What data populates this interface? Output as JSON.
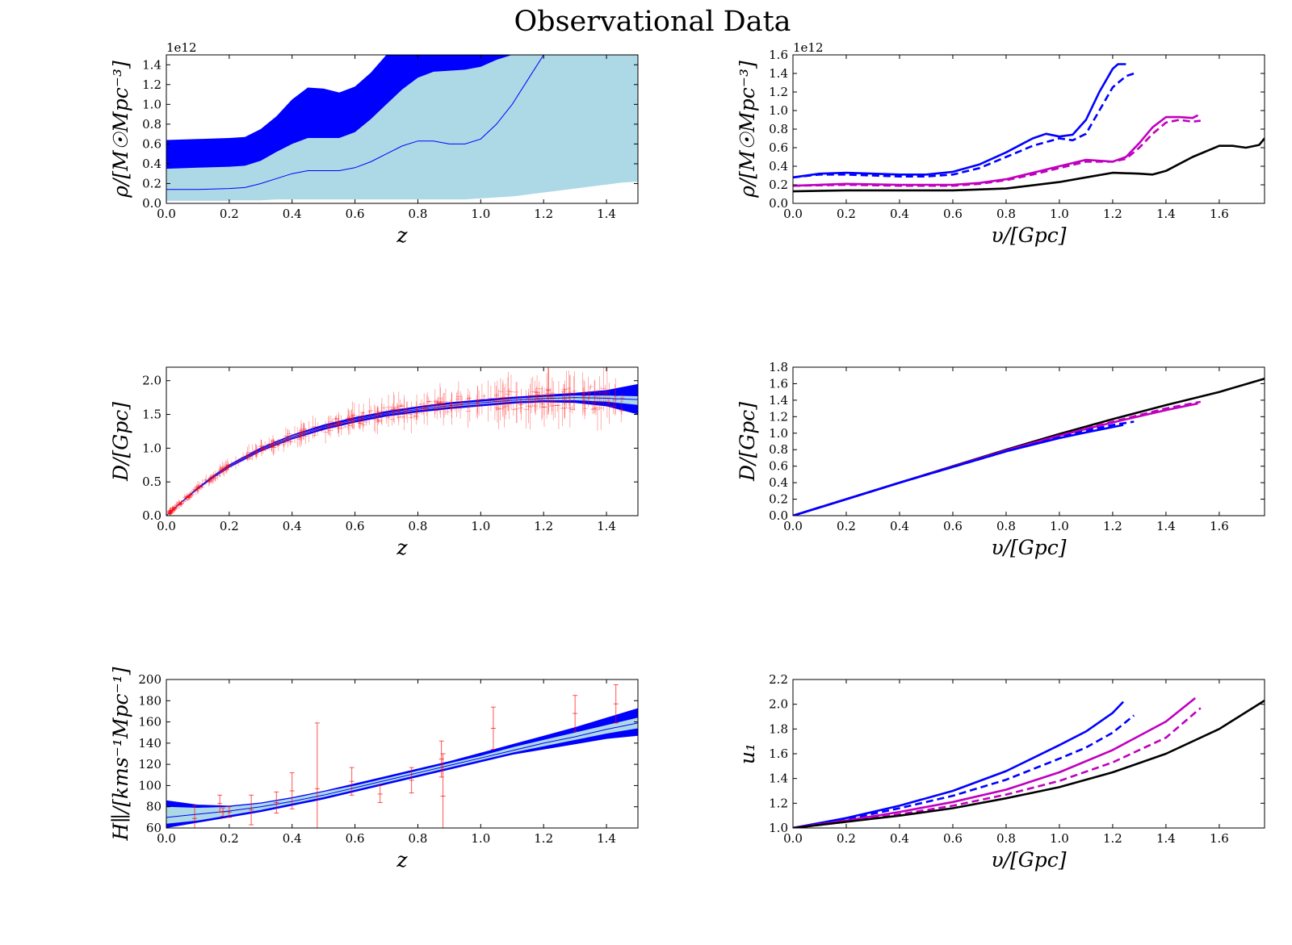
{
  "title": "Observational Data",
  "colors": {
    "dark_band": "#0000ff",
    "light_band": "#add8e6",
    "mean_line": "#0000ff",
    "error_bars": "#ff0000",
    "blue": "#0000ff",
    "magenta": "#bf00bf",
    "black": "#000000"
  },
  "chart_data": [
    {
      "id": "rho_z",
      "type": "area",
      "ylabel": "ρ/[M☉Mpc⁻³]",
      "xlabel": "z",
      "multiplier": "1e12",
      "xlim": [
        0,
        1.5
      ],
      "ylim": [
        0,
        1.5
      ],
      "xticks": [
        "0.0",
        "0.2",
        "0.4",
        "0.6",
        "0.8",
        "1.0",
        "1.2",
        "1.4"
      ],
      "yticks": [
        "0.0",
        "0.2",
        "0.4",
        "0.6",
        "0.8",
        "1.0",
        "1.2",
        "1.4"
      ],
      "x": [
        0,
        0.1,
        0.2,
        0.25,
        0.3,
        0.35,
        0.4,
        0.45,
        0.5,
        0.55,
        0.6,
        0.65,
        0.7,
        0.75,
        0.8,
        0.85,
        0.9,
        0.95,
        1.0,
        1.05,
        1.1,
        1.15,
        1.2,
        1.25,
        1.3,
        1.35,
        1.4,
        1.45,
        1.5
      ],
      "series": [
        {
          "band": "outer",
          "upper": [
            0.64,
            0.65,
            0.66,
            0.67,
            0.75,
            0.88,
            1.05,
            1.17,
            1.16,
            1.12,
            1.18,
            1.32,
            1.5,
            1.5,
            1.5,
            1.5,
            1.5,
            1.5,
            1.5,
            1.5,
            1.5,
            1.5,
            1.5,
            1.5,
            1.5,
            1.5,
            1.5,
            1.5,
            1.5
          ],
          "lower": [
            0.03,
            0.03,
            0.03,
            0.04,
            0.06,
            0.08,
            0.09,
            0.1,
            0.09,
            0.09,
            0.1,
            0.12,
            0.14,
            0.16,
            0.18,
            0.19,
            0.19,
            0.18,
            0.18,
            0.2,
            0.24,
            0.3,
            0.38,
            0.5,
            0.62,
            0.8,
            1.0,
            1.25,
            1.38
          ]
        },
        {
          "band": "inner",
          "upper": [
            0.35,
            0.36,
            0.37,
            0.38,
            0.43,
            0.52,
            0.6,
            0.66,
            0.66,
            0.66,
            0.72,
            0.85,
            1.0,
            1.15,
            1.27,
            1.33,
            1.34,
            1.35,
            1.38,
            1.45,
            1.5,
            1.5,
            1.5,
            1.5,
            1.5,
            1.5,
            1.5,
            1.5,
            1.5
          ],
          "lower": [
            0.03,
            0.03,
            0.03,
            0.03,
            0.03,
            0.04,
            0.04,
            0.04,
            0.04,
            0.04,
            0.04,
            0.04,
            0.04,
            0.04,
            0.04,
            0.04,
            0.04,
            0.04,
            0.05,
            0.06,
            0.07,
            0.09,
            0.11,
            0.13,
            0.15,
            0.17,
            0.19,
            0.21,
            0.22
          ]
        },
        {
          "band": "mean",
          "values": [
            0.14,
            0.14,
            0.15,
            0.16,
            0.2,
            0.25,
            0.3,
            0.33,
            0.33,
            0.33,
            0.36,
            0.42,
            0.5,
            0.58,
            0.63,
            0.63,
            0.6,
            0.6,
            0.65,
            0.8,
            1.0,
            1.25,
            1.5,
            null,
            null,
            null,
            null,
            null,
            null
          ]
        }
      ]
    },
    {
      "id": "rho_v",
      "type": "line",
      "ylabel": "ρ/[M☉Mpc⁻³]",
      "xlabel": "υ/[Gpc]",
      "multiplier": "1e12",
      "xlim": [
        0,
        1.77
      ],
      "ylim": [
        0,
        1.6
      ],
      "xticks": [
        "0.0",
        "0.2",
        "0.4",
        "0.6",
        "0.8",
        "1.0",
        "1.2",
        "1.4",
        "1.6"
      ],
      "yticks": [
        "0.0",
        "0.2",
        "0.4",
        "0.6",
        "0.8",
        "1.0",
        "1.2",
        "1.4",
        "1.6"
      ],
      "series": [
        {
          "color": "blue",
          "style": "solid",
          "x": [
            0,
            0.1,
            0.2,
            0.3,
            0.4,
            0.5,
            0.6,
            0.7,
            0.8,
            0.9,
            0.95,
            1.0,
            1.05,
            1.1,
            1.15,
            1.2,
            1.22,
            1.25
          ],
          "y": [
            0.28,
            0.32,
            0.33,
            0.32,
            0.31,
            0.31,
            0.34,
            0.42,
            0.55,
            0.7,
            0.75,
            0.72,
            0.74,
            0.9,
            1.2,
            1.45,
            1.5,
            1.5
          ]
        },
        {
          "color": "blue",
          "style": "dashed",
          "x": [
            0,
            0.1,
            0.2,
            0.3,
            0.4,
            0.5,
            0.6,
            0.7,
            0.8,
            0.9,
            1.0,
            1.05,
            1.1,
            1.15,
            1.2,
            1.25,
            1.28
          ],
          "y": [
            0.28,
            0.31,
            0.31,
            0.3,
            0.29,
            0.29,
            0.31,
            0.38,
            0.5,
            0.62,
            0.7,
            0.68,
            0.75,
            1.0,
            1.25,
            1.37,
            1.4
          ]
        },
        {
          "color": "magenta",
          "style": "solid",
          "x": [
            0,
            0.2,
            0.4,
            0.6,
            0.7,
            0.8,
            0.9,
            1.0,
            1.1,
            1.2,
            1.25,
            1.3,
            1.35,
            1.4,
            1.45,
            1.5,
            1.52
          ],
          "y": [
            0.19,
            0.21,
            0.2,
            0.2,
            0.22,
            0.26,
            0.33,
            0.4,
            0.47,
            0.45,
            0.5,
            0.65,
            0.82,
            0.93,
            0.93,
            0.92,
            0.95
          ]
        },
        {
          "color": "magenta",
          "style": "dashed",
          "x": [
            0,
            0.2,
            0.4,
            0.6,
            0.7,
            0.8,
            0.9,
            1.0,
            1.1,
            1.2,
            1.25,
            1.3,
            1.35,
            1.4,
            1.45,
            1.5,
            1.53
          ],
          "y": [
            0.19,
            0.2,
            0.19,
            0.19,
            0.21,
            0.25,
            0.31,
            0.38,
            0.45,
            0.45,
            0.48,
            0.6,
            0.75,
            0.87,
            0.9,
            0.88,
            0.89
          ]
        },
        {
          "color": "black",
          "style": "solid",
          "x": [
            0,
            0.2,
            0.4,
            0.6,
            0.8,
            1.0,
            1.1,
            1.2,
            1.3,
            1.35,
            1.4,
            1.5,
            1.6,
            1.65,
            1.7,
            1.75,
            1.77
          ],
          "y": [
            0.13,
            0.14,
            0.14,
            0.14,
            0.16,
            0.23,
            0.28,
            0.33,
            0.32,
            0.31,
            0.35,
            0.5,
            0.62,
            0.62,
            0.6,
            0.63,
            0.7
          ]
        }
      ]
    },
    {
      "id": "D_z",
      "type": "area",
      "ylabel": "D/[Gpc]",
      "xlabel": "z",
      "xlim": [
        0,
        1.5
      ],
      "ylim": [
        0,
        2.2
      ],
      "xticks": [
        "0.0",
        "0.2",
        "0.4",
        "0.6",
        "0.8",
        "1.0",
        "1.2",
        "1.4"
      ],
      "yticks": [
        "0.0",
        "0.5",
        "1.0",
        "1.5",
        "2.0"
      ],
      "x": [
        0,
        0.05,
        0.1,
        0.15,
        0.2,
        0.3,
        0.4,
        0.5,
        0.6,
        0.7,
        0.8,
        0.9,
        1.0,
        1.1,
        1.2,
        1.3,
        1.4,
        1.5
      ],
      "series": [
        {
          "band": "outer",
          "upper": [
            0,
            0.22,
            0.42,
            0.6,
            0.76,
            1.01,
            1.2,
            1.35,
            1.46,
            1.55,
            1.62,
            1.68,
            1.72,
            1.76,
            1.79,
            1.82,
            1.86,
            1.95
          ],
          "lower": [
            0,
            0.2,
            0.39,
            0.56,
            0.71,
            0.95,
            1.13,
            1.27,
            1.38,
            1.47,
            1.53,
            1.58,
            1.62,
            1.66,
            1.68,
            1.67,
            1.62,
            1.5
          ]
        },
        {
          "band": "inner",
          "upper": [
            0,
            0.215,
            0.41,
            0.59,
            0.745,
            0.99,
            1.18,
            1.32,
            1.43,
            1.52,
            1.59,
            1.65,
            1.69,
            1.73,
            1.76,
            1.78,
            1.78,
            1.77
          ],
          "lower": [
            0,
            0.205,
            0.4,
            0.57,
            0.725,
            0.97,
            1.15,
            1.3,
            1.41,
            1.5,
            1.56,
            1.61,
            1.65,
            1.69,
            1.71,
            1.71,
            1.69,
            1.64
          ]
        },
        {
          "band": "mean",
          "values": [
            0,
            0.21,
            0.405,
            0.58,
            0.735,
            0.98,
            1.165,
            1.31,
            1.42,
            1.51,
            1.575,
            1.63,
            1.67,
            1.71,
            1.735,
            1.75,
            1.74,
            1.72
          ]
        }
      ],
      "errorbars": {
        "color": "error_bars"
      }
    },
    {
      "id": "D_v",
      "type": "line",
      "ylabel": "D/[Gpc]",
      "xlabel": "υ/[Gpc]",
      "xlim": [
        0,
        1.77
      ],
      "ylim": [
        0,
        1.8
      ],
      "xticks": [
        "0.0",
        "0.2",
        "0.4",
        "0.6",
        "0.8",
        "1.0",
        "1.2",
        "1.4",
        "1.6"
      ],
      "yticks": [
        "0.0",
        "0.2",
        "0.4",
        "0.6",
        "0.8",
        "1.0",
        "1.2",
        "1.4",
        "1.6",
        "1.8"
      ],
      "series": [
        {
          "color": "black",
          "style": "solid",
          "x": [
            0,
            0.4,
            0.8,
            1.0,
            1.2,
            1.4,
            1.6,
            1.77
          ],
          "y": [
            0,
            0.4,
            0.8,
            0.99,
            1.17,
            1.34,
            1.5,
            1.66
          ]
        },
        {
          "color": "magenta",
          "style": "solid",
          "x": [
            0,
            0.4,
            0.8,
            1.0,
            1.2,
            1.4,
            1.52
          ],
          "y": [
            0,
            0.4,
            0.79,
            0.97,
            1.13,
            1.28,
            1.36
          ]
        },
        {
          "color": "magenta",
          "style": "dashed",
          "x": [
            0,
            0.4,
            0.8,
            1.0,
            1.2,
            1.4,
            1.53
          ],
          "y": [
            0,
            0.4,
            0.79,
            0.97,
            1.14,
            1.3,
            1.38
          ]
        },
        {
          "color": "blue",
          "style": "solid",
          "x": [
            0,
            0.4,
            0.8,
            1.0,
            1.1,
            1.24
          ],
          "y": [
            0,
            0.4,
            0.78,
            0.94,
            1.01,
            1.1
          ]
        },
        {
          "color": "blue",
          "style": "dashed",
          "x": [
            0,
            0.4,
            0.8,
            1.0,
            1.1,
            1.2,
            1.28
          ],
          "y": [
            0,
            0.4,
            0.78,
            0.95,
            1.03,
            1.1,
            1.14
          ]
        }
      ]
    },
    {
      "id": "H_z",
      "type": "area",
      "ylabel": "H∥/[kms⁻¹Mpc⁻¹]",
      "xlabel": "z",
      "xlim": [
        0,
        1.5
      ],
      "ylim": [
        60,
        200
      ],
      "xticks": [
        "0.0",
        "0.2",
        "0.4",
        "0.6",
        "0.8",
        "1.0",
        "1.2",
        "1.4"
      ],
      "yticks": [
        "60",
        "80",
        "100",
        "120",
        "140",
        "160",
        "180",
        "200"
      ],
      "x": [
        0,
        0.1,
        0.2,
        0.3,
        0.4,
        0.5,
        0.6,
        0.7,
        0.8,
        0.9,
        1.0,
        1.1,
        1.2,
        1.3,
        1.4,
        1.5
      ],
      "series": [
        {
          "band": "outer",
          "upper": [
            86,
            82,
            81,
            84,
            89,
            95,
            102,
            109,
            116,
            123,
            131,
            139,
            147,
            155,
            164,
            173
          ],
          "lower": [
            60,
            65,
            70,
            75,
            81,
            87,
            94,
            101,
            108,
            115,
            122,
            129,
            134,
            139,
            144,
            147
          ]
        },
        {
          "band": "inner",
          "upper": [
            80,
            79,
            80,
            83,
            88,
            94,
            100,
            107,
            114,
            121,
            128,
            136,
            143,
            150,
            157,
            164
          ],
          "lower": [
            64,
            67,
            72,
            77,
            83,
            89,
            96,
            103,
            110,
            117,
            124,
            131,
            137,
            143,
            149,
            154
          ]
        },
        {
          "band": "mean",
          "values": [
            70,
            73,
            76,
            80,
            85,
            91,
            98,
            105,
            112,
            119,
            126,
            133,
            140,
            146,
            153,
            159
          ]
        }
      ],
      "points": [
        {
          "z": 0.09,
          "H": 69,
          "err": 12
        },
        {
          "z": 0.17,
          "H": 83,
          "err": 8
        },
        {
          "z": 0.18,
          "H": 75,
          "err": 4
        },
        {
          "z": 0.2,
          "H": 75,
          "err": 5
        },
        {
          "z": 0.27,
          "H": 77,
          "err": 14
        },
        {
          "z": 0.35,
          "H": 84,
          "err": 10
        },
        {
          "z": 0.4,
          "H": 95,
          "err": 17
        },
        {
          "z": 0.48,
          "H": 97,
          "err": 62
        },
        {
          "z": 0.59,
          "H": 104,
          "err": 13
        },
        {
          "z": 0.68,
          "H": 92,
          "err": 8
        },
        {
          "z": 0.78,
          "H": 105,
          "err": 12
        },
        {
          "z": 0.875,
          "H": 125,
          "err": 17
        },
        {
          "z": 0.88,
          "H": 90,
          "err": 40
        },
        {
          "z": 1.04,
          "H": 154,
          "err": 20
        },
        {
          "z": 1.3,
          "H": 168,
          "err": 17
        },
        {
          "z": 1.43,
          "H": 177,
          "err": 18
        }
      ]
    },
    {
      "id": "u1_v",
      "type": "line",
      "ylabel": "u₁",
      "xlabel": "υ/[Gpc]",
      "xlim": [
        0,
        1.77
      ],
      "ylim": [
        1.0,
        2.2
      ],
      "xticks": [
        "0.0",
        "0.2",
        "0.4",
        "0.6",
        "0.8",
        "1.0",
        "1.2",
        "1.4",
        "1.6"
      ],
      "yticks": [
        "1.0",
        "1.2",
        "1.4",
        "1.6",
        "1.8",
        "2.0",
        "2.2"
      ],
      "series": [
        {
          "color": "blue",
          "style": "solid",
          "x": [
            0,
            0.2,
            0.4,
            0.6,
            0.8,
            1.0,
            1.1,
            1.2,
            1.24
          ],
          "y": [
            1.0,
            1.08,
            1.18,
            1.3,
            1.46,
            1.67,
            1.78,
            1.93,
            2.02
          ]
        },
        {
          "color": "blue",
          "style": "dashed",
          "x": [
            0,
            0.2,
            0.4,
            0.6,
            0.8,
            1.0,
            1.1,
            1.2,
            1.28
          ],
          "y": [
            1.0,
            1.07,
            1.16,
            1.26,
            1.39,
            1.56,
            1.65,
            1.77,
            1.91
          ]
        },
        {
          "color": "magenta",
          "style": "solid",
          "x": [
            0,
            0.2,
            0.4,
            0.6,
            0.8,
            1.0,
            1.2,
            1.4,
            1.51
          ],
          "y": [
            1.0,
            1.06,
            1.13,
            1.21,
            1.31,
            1.45,
            1.63,
            1.86,
            2.05
          ]
        },
        {
          "color": "magenta",
          "style": "dashed",
          "x": [
            0,
            0.2,
            0.4,
            0.6,
            0.8,
            1.0,
            1.2,
            1.4,
            1.53
          ],
          "y": [
            1.0,
            1.05,
            1.11,
            1.18,
            1.27,
            1.38,
            1.53,
            1.73,
            1.97
          ]
        },
        {
          "color": "black",
          "style": "solid",
          "x": [
            0,
            0.2,
            0.4,
            0.6,
            0.8,
            1.0,
            1.2,
            1.4,
            1.6,
            1.77
          ],
          "y": [
            1.0,
            1.05,
            1.1,
            1.16,
            1.24,
            1.33,
            1.45,
            1.6,
            1.8,
            2.03
          ]
        }
      ]
    }
  ]
}
